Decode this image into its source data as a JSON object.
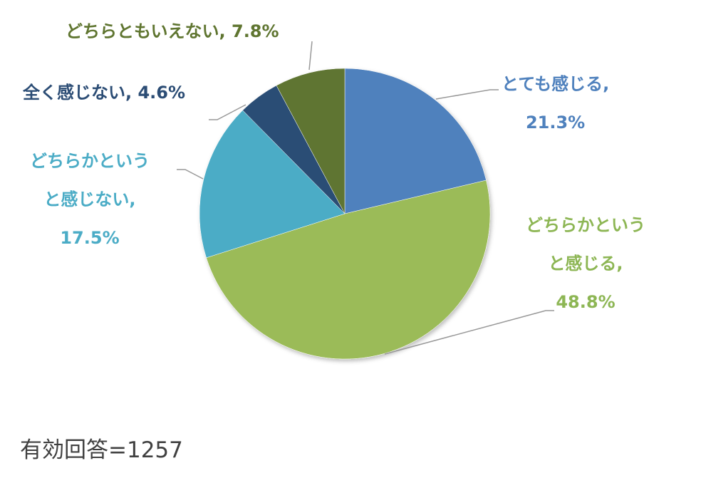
{
  "chart_data": {
    "type": "pie",
    "title": "",
    "start_angle_deg": 0,
    "direction": "clockwise",
    "slices": [
      {
        "label": "とても感じる",
        "value": 21.3,
        "value_text": "21.3%",
        "color": "#4F81BD"
      },
      {
        "label": "どちらかというと感じる",
        "value": 48.8,
        "value_text": "48.8%",
        "color": "#9BBB59"
      },
      {
        "label": "どちらかというと感じない",
        "value": 17.5,
        "value_text": "17.5%",
        "color": "#4BACC6"
      },
      {
        "label": "全く感じない",
        "value": 4.6,
        "value_text": "4.6%",
        "color": "#2C4D75"
      },
      {
        "label": "どちらともいえない",
        "value": 7.8,
        "value_text": "7.8%",
        "color": "#5F7530"
      }
    ],
    "label_colors": [
      "#4F81BD",
      "#8DB654",
      "#4BACC6",
      "#2C4D75",
      "#5F7530"
    ],
    "note": "有効回答=1257"
  },
  "labels": {
    "s0": {
      "line1": "とても感じる,",
      "line2": "21.3%"
    },
    "s1": {
      "line1": "どちらかという",
      "line2": "と感じる,",
      "line3": "48.8%"
    },
    "s2": {
      "line1": "どちらかという",
      "line2": "と感じない,",
      "line3": "17.5%"
    },
    "s3": {
      "line1": "全く感じない, 4.6%"
    },
    "s4": {
      "line1": "どちらともいえない, 7.8%"
    }
  },
  "footer": {
    "text": "有効回答=1257"
  }
}
